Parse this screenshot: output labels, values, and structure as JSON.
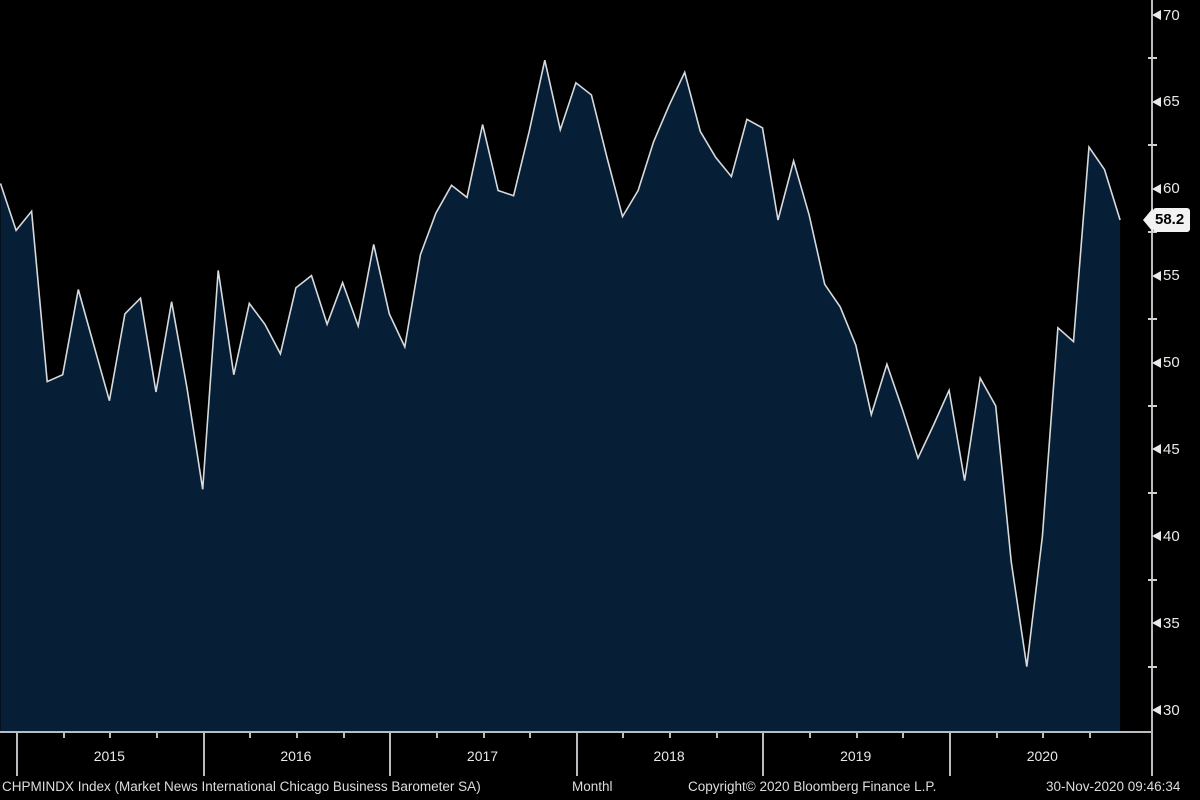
{
  "chart_data": {
    "type": "area",
    "title": "CHPMINDX Index (Market News International Chicago Business Barometer SA) Monthly",
    "security": "CHPMINDX Index (Market News International Chicago Business Barometer SA)",
    "periodicity": "Monthl",
    "copyright": "Copyright© 2020 Bloomberg Finance L.P.",
    "timestamp": "30-Nov-2020 09:46:34",
    "last_value_label": "58.2",
    "last_value": 58.2,
    "ylim": [
      28.7,
      70.9
    ],
    "y_ticks": [
      70,
      65,
      60,
      55,
      50,
      45,
      40,
      35,
      30
    ],
    "y_minor_ticks": [
      67.5,
      62.5,
      57.5,
      52.5,
      47.5,
      42.5,
      37.5,
      32.5
    ],
    "x_year_labels": [
      "2015",
      "2016",
      "2017",
      "2018",
      "2019",
      "2020"
    ],
    "grid": "off",
    "legend": "none",
    "x": [
      "Nov-2014",
      "Dec-2014",
      "Jan-2015",
      "Feb-2015",
      "Mar-2015",
      "Apr-2015",
      "May-2015",
      "Jun-2015",
      "Jul-2015",
      "Aug-2015",
      "Sep-2015",
      "Oct-2015",
      "Nov-2015",
      "Dec-2015",
      "Jan-2016",
      "Feb-2016",
      "Mar-2016",
      "Apr-2016",
      "May-2016",
      "Jun-2016",
      "Jul-2016",
      "Aug-2016",
      "Sep-2016",
      "Oct-2016",
      "Nov-2016",
      "Dec-2016",
      "Jan-2017",
      "Feb-2017",
      "Mar-2017",
      "Apr-2017",
      "May-2017",
      "Jun-2017",
      "Jul-2017",
      "Aug-2017",
      "Sep-2017",
      "Oct-2017",
      "Nov-2017",
      "Dec-2017",
      "Jan-2018",
      "Feb-2018",
      "Mar-2018",
      "Apr-2018",
      "May-2018",
      "Jun-2018",
      "Jul-2018",
      "Aug-2018",
      "Sep-2018",
      "Oct-2018",
      "Nov-2018",
      "Dec-2018",
      "Jan-2019",
      "Feb-2019",
      "Mar-2019",
      "Apr-2019",
      "May-2019",
      "Jun-2019",
      "Jul-2019",
      "Aug-2019",
      "Sep-2019",
      "Oct-2019",
      "Nov-2019",
      "Dec-2019",
      "Jan-2020",
      "Feb-2020",
      "Mar-2020",
      "Apr-2020",
      "May-2020",
      "Jun-2020",
      "Jul-2020",
      "Aug-2020",
      "Sep-2020",
      "Oct-2020",
      "Nov-2020"
    ],
    "values": [
      60.3,
      57.6,
      58.7,
      48.9,
      49.3,
      54.2,
      51.0,
      47.8,
      52.8,
      53.7,
      48.3,
      53.5,
      48.5,
      42.7,
      55.3,
      49.3,
      53.4,
      52.2,
      50.5,
      54.3,
      55.0,
      52.2,
      54.6,
      52.1,
      56.8,
      52.8,
      50.9,
      56.2,
      58.6,
      60.2,
      59.5,
      63.7,
      59.9,
      59.6,
      63.3,
      67.4,
      63.4,
      66.1,
      65.4,
      61.8,
      58.4,
      59.9,
      62.7,
      64.8,
      66.7,
      63.3,
      61.8,
      60.7,
      64.0,
      63.5,
      58.2,
      61.6,
      58.5,
      54.5,
      53.2,
      51.0,
      47.0,
      49.9,
      47.3,
      44.5,
      46.4,
      48.4,
      43.2,
      49.1,
      47.5,
      38.5,
      32.5,
      40.0,
      52.0,
      51.2,
      62.4,
      61.1,
      58.2
    ],
    "colors": {
      "background": "#000000",
      "area_fill": "#061f37",
      "line": "#d7dadd",
      "axis": "#b9bdc2",
      "label_text": "#e9e9e9",
      "footer_text": "#dddddd",
      "badge_bg": "#f2f2f2",
      "badge_text": "#000000"
    }
  }
}
